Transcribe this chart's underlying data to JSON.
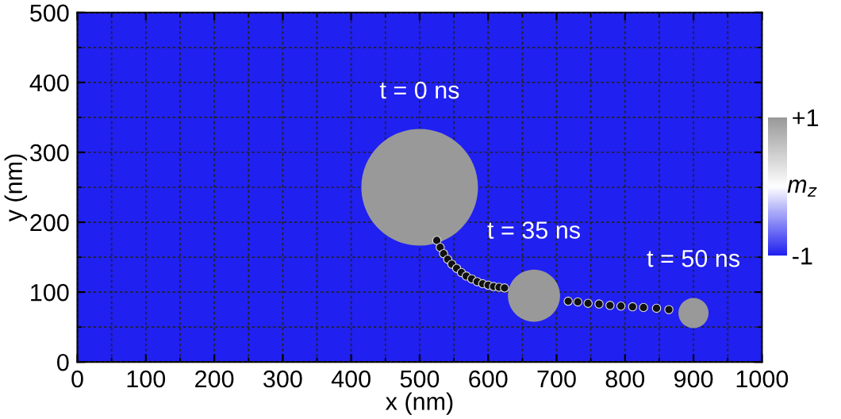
{
  "chart_data": {
    "type": "scatter",
    "xlabel": "x (nm)",
    "ylabel": "y (nm)",
    "clabel": "m$_{z}$",
    "xlim": [
      0,
      1000
    ],
    "ylim": [
      0,
      500
    ],
    "xticks": [
      0,
      100,
      200,
      300,
      400,
      500,
      600,
      700,
      800,
      900,
      1000
    ],
    "yticks": [
      0,
      100,
      200,
      300,
      400,
      500
    ],
    "clim": [
      -1,
      1
    ],
    "cticks": [
      {
        "value": -1,
        "label": "-1"
      },
      {
        "value": 1,
        "label": "+1"
      }
    ],
    "grid": true,
    "marker": "circle",
    "series": [
      {
        "type": "bubble",
        "x": [
          500,
          667,
          900
        ],
        "values": [
          250,
          95,
          70
        ],
        "sizes": [
          1,
          0.2,
          0.067
        ],
        "cvalues": [
          1,
          1,
          1
        ]
      },
      {
        "type": "scatter",
        "color": "#111111",
        "x": [
          525,
          530,
          535,
          541,
          547,
          554,
          561,
          568,
          576,
          584,
          592,
          600,
          608,
          616,
          624,
          717,
          731,
          746,
          762,
          778,
          794,
          811,
          827,
          846,
          864
        ],
        "values": [
          174,
          164,
          155,
          147,
          140,
          134,
          128,
          123,
          119,
          115,
          112,
          110,
          108,
          107,
          106,
          87,
          86,
          84,
          83,
          81,
          80,
          79,
          78,
          77,
          75
        ]
      }
    ],
    "annotations": [
      "t = 0 ns",
      "t = 35 ns",
      "t = 50 ns"
    ]
  }
}
